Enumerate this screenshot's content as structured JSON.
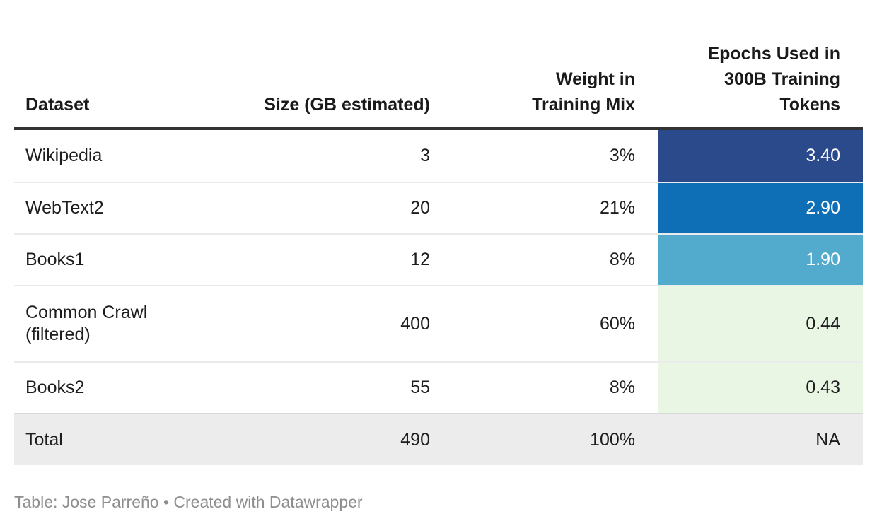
{
  "chart_data": {
    "type": "table",
    "columns": [
      "Dataset",
      "Size (GB estimated)",
      "Weight in Training Mix",
      "Epochs Used in 300B Training Tokens"
    ],
    "rows": [
      {
        "dataset": "Wikipedia",
        "size_gb": 3,
        "weight_pct": 3,
        "epochs": 3.4
      },
      {
        "dataset": "WebText2",
        "size_gb": 20,
        "weight_pct": 21,
        "epochs": 2.9
      },
      {
        "dataset": "Books1",
        "size_gb": 12,
        "weight_pct": 8,
        "epochs": 1.9
      },
      {
        "dataset": "Common Crawl (filtered)",
        "size_gb": 400,
        "weight_pct": 60,
        "epochs": 0.44
      },
      {
        "dataset": "Books2",
        "size_gb": 55,
        "weight_pct": 8,
        "epochs": 0.43
      }
    ],
    "total": {
      "dataset": "Total",
      "size_gb": 490,
      "weight_pct": 100,
      "epochs": "NA"
    },
    "heatmap": {
      "column": "Epochs Used in 300B Training Tokens",
      "cell_colors": [
        "#2a4a8c",
        "#0e6eb6",
        "#52aacc",
        "#e9f6e4",
        "#e9f6e4"
      ]
    },
    "layout_hints": {
      "grid": "off",
      "legend": "none",
      "header_rule_color": "#333333",
      "total_row_bg": "#ececec"
    },
    "credit": "Table: Jose Parreño • Created with Datawrapper"
  },
  "table": {
    "headers": {
      "dataset": "Dataset",
      "size": "Size (GB estimated)",
      "weight": "Weight in\nTraining Mix",
      "epochs": "Epochs Used in\n300B Training\nTokens"
    },
    "rows": [
      {
        "dataset": "Wikipedia",
        "size": "3",
        "weight": "3%",
        "epochs": "3.40",
        "epochs_style": "background-color:#2a4a8c;color:#ffffff"
      },
      {
        "dataset": "WebText2",
        "size": "20",
        "weight": "21%",
        "epochs": "2.90",
        "epochs_style": "background-color:#0e6eb6;color:#ffffff"
      },
      {
        "dataset": "Books1",
        "size": "12",
        "weight": "8%",
        "epochs": "1.90",
        "epochs_style": "background-color:#52aacc;color:#ffffff"
      },
      {
        "dataset": "Common Crawl\n(filtered)",
        "size": "400",
        "weight": "60%",
        "epochs": "0.44",
        "epochs_style": "background-color:#e9f6e4;color:#1d1d1d"
      },
      {
        "dataset": "Books2",
        "size": "55",
        "weight": "8%",
        "epochs": "0.43",
        "epochs_style": "background-color:#e9f6e4;color:#1d1d1d"
      }
    ],
    "total_row": {
      "dataset": "Total",
      "size": "490",
      "weight": "100%",
      "epochs": "NA"
    }
  },
  "footer": {
    "credit": "Table: Jose Parreño • Created with Datawrapper"
  },
  "colors": {
    "heatmap_navy": "#2a4a8c",
    "heatmap_blue": "#0e6eb6",
    "heatmap_teal": "#52aacc",
    "heatmap_green": "#e9f6e4",
    "total_row_bg": "#ececec",
    "header_rule": "#333333",
    "body_text": "#1d1d1d",
    "credit_text": "#8e8e8e"
  }
}
